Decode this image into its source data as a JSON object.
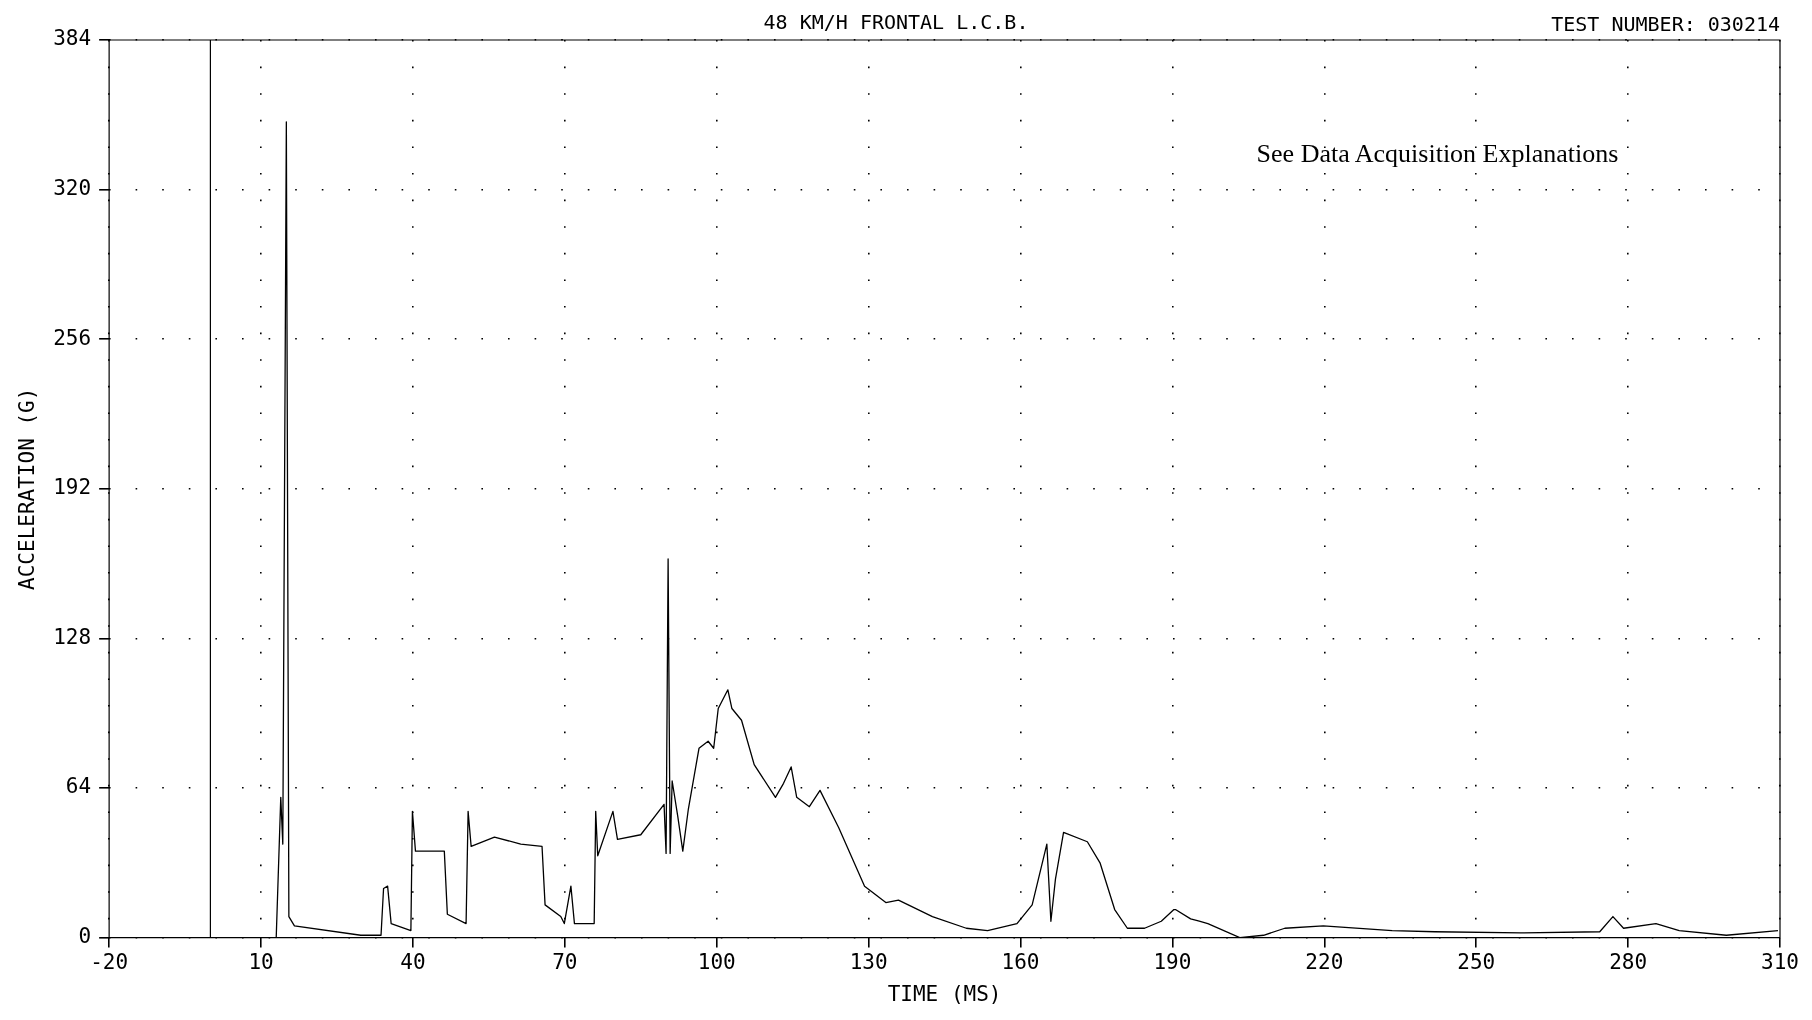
{
  "chart_data": {
    "type": "line",
    "title": "48 KM/H FRONTAL L.C.B.",
    "subtitle": "TEST NUMBER: 030214",
    "xlabel": "TIME (MS)",
    "ylabel": "ACCELERATION (G)",
    "annotations": [
      "See Data Acquisition Explanations"
    ],
    "xlim": [
      -20,
      310
    ],
    "xticks": [
      -20,
      10,
      40,
      70,
      100,
      130,
      160,
      190,
      220,
      250,
      280,
      310
    ],
    "ylim": [
      0,
      384
    ],
    "yticks": [
      0,
      64,
      128,
      192,
      256,
      320,
      384
    ],
    "grid": true,
    "legend": false,
    "marker": "none",
    "line_style": "solid",
    "ref_lines": [
      {
        "axis": "x",
        "value": 0,
        "label": null,
        "color": "#000000"
      }
    ],
    "series": [
      {
        "color": "#000000",
        "x": [
          -20,
          13,
          13.9,
          14.3,
          15.0,
          15.5,
          16.6,
          29.7,
          33.7,
          34.2,
          35.0,
          35.7,
          39.6,
          39.9,
          40.5,
          46.2,
          46.8,
          50.5,
          50.9,
          51.5,
          56.1,
          61.3,
          65.5,
          66.1,
          69.2,
          69.9,
          71.2,
          71.9,
          73.8,
          75.8,
          76.1,
          76.5,
          79.5,
          80.4,
          85.0,
          89.6,
          90.0,
          90.4,
          90.8,
          91.2,
          92.3,
          93.3,
          94.4,
          96.5,
          98.3,
          99.4,
          100.3,
          102.2,
          103.0,
          104.9,
          107.4,
          111.6,
          113.2,
          114.7,
          115.8,
          118.3,
          120.4,
          124.1,
          129.2,
          133.4,
          135.9,
          142.6,
          149.3,
          153.5,
          159.3,
          162.3,
          165.2,
          166.0,
          166.9,
          168.5,
          173.2,
          175.7,
          178.6,
          181.1,
          184.5,
          187.8,
          190.3,
          190.6,
          193.6,
          195.3,
          197.0,
          203.3,
          208,
          212.2,
          219.8,
          233.4,
          241.8,
          258.8,
          274.4,
          277,
          279.1,
          285.5,
          290.1,
          299.4,
          309.6
        ],
        "values": [
          0,
          0,
          60,
          40,
          349,
          9,
          5,
          1,
          1,
          21,
          22,
          6,
          3,
          54,
          37,
          37,
          10,
          6,
          54,
          39,
          43,
          40,
          39,
          14,
          9,
          6,
          22,
          6,
          6,
          6,
          54,
          35,
          54,
          42,
          44,
          57,
          36,
          162,
          36,
          67,
          52,
          37,
          55,
          81,
          84,
          81,
          98,
          106,
          98,
          93,
          74,
          60,
          66,
          73,
          60,
          56,
          63,
          47,
          22,
          15,
          16,
          9,
          4,
          3,
          6,
          14,
          40,
          7,
          25,
          45,
          41,
          32,
          12,
          4,
          4,
          7,
          12,
          12,
          8,
          7,
          6,
          0,
          1,
          4,
          5,
          3,
          2.5,
          2,
          2.5,
          9,
          4,
          6,
          3,
          1,
          3
        ]
      }
    ]
  }
}
